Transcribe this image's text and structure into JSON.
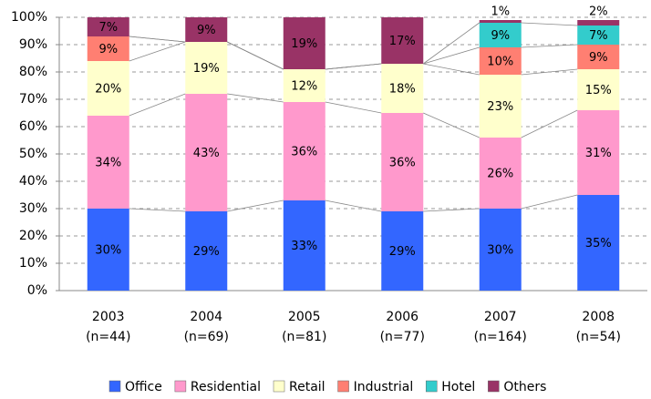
{
  "chart_data": {
    "type": "stacked_bar_100",
    "categories": [
      "2003",
      "2004",
      "2005",
      "2006",
      "2007",
      "2008"
    ],
    "category_notes": [
      "(n=44)",
      "(n=69)",
      "(n=81)",
      "(n=77)",
      "(n=164)",
      "(n=54)"
    ],
    "series": [
      {
        "name": "Office",
        "color": "#3366ff",
        "values": [
          30,
          29,
          33,
          29,
          30,
          35
        ],
        "value_labels": [
          "30%",
          "29%",
          "33%",
          "29%",
          "30%",
          "35%"
        ]
      },
      {
        "name": "Residential",
        "color": "#ff99cc",
        "values": [
          34,
          43,
          36,
          36,
          26,
          31
        ],
        "value_labels": [
          "34%",
          "43%",
          "36%",
          "36%",
          "26%",
          "31%"
        ]
      },
      {
        "name": "Retail",
        "color": "#ffffcc",
        "values": [
          20,
          19,
          12,
          18,
          23,
          15
        ],
        "value_labels": [
          "20%",
          "19%",
          "12%",
          "18%",
          "23%",
          "15%"
        ]
      },
      {
        "name": "Industrial",
        "color": "#ff7f72",
        "values": [
          9,
          0,
          0,
          0,
          10,
          9
        ],
        "value_labels": [
          "9%",
          null,
          null,
          null,
          "10%",
          "9%"
        ]
      },
      {
        "name": "Hotel",
        "color": "#33cccc",
        "values": [
          0,
          0,
          0,
          0,
          9,
          7
        ],
        "value_labels": [
          null,
          null,
          null,
          null,
          "9%",
          "7%"
        ]
      },
      {
        "name": "Others",
        "color": "#993366",
        "values": [
          7,
          9,
          19,
          17,
          1,
          2
        ],
        "value_labels": [
          "7%",
          "9%",
          "19%",
          "17%",
          "1%",
          "2%"
        ]
      }
    ],
    "ylim": [
      0,
      100
    ],
    "yticks": [
      {
        "value": 0,
        "label": "0%"
      },
      {
        "value": 10,
        "label": "10%"
      },
      {
        "value": 20,
        "label": "20%"
      },
      {
        "value": 30,
        "label": "30%"
      },
      {
        "value": 40,
        "label": "40%"
      },
      {
        "value": 50,
        "label": "50%"
      },
      {
        "value": 60,
        "label": "60%"
      },
      {
        "value": 70,
        "label": "70%"
      },
      {
        "value": 80,
        "label": "80%"
      },
      {
        "value": 90,
        "label": "90%"
      },
      {
        "value": 100,
        "label": "100%"
      }
    ],
    "grid": true,
    "legend": "bottom"
  }
}
